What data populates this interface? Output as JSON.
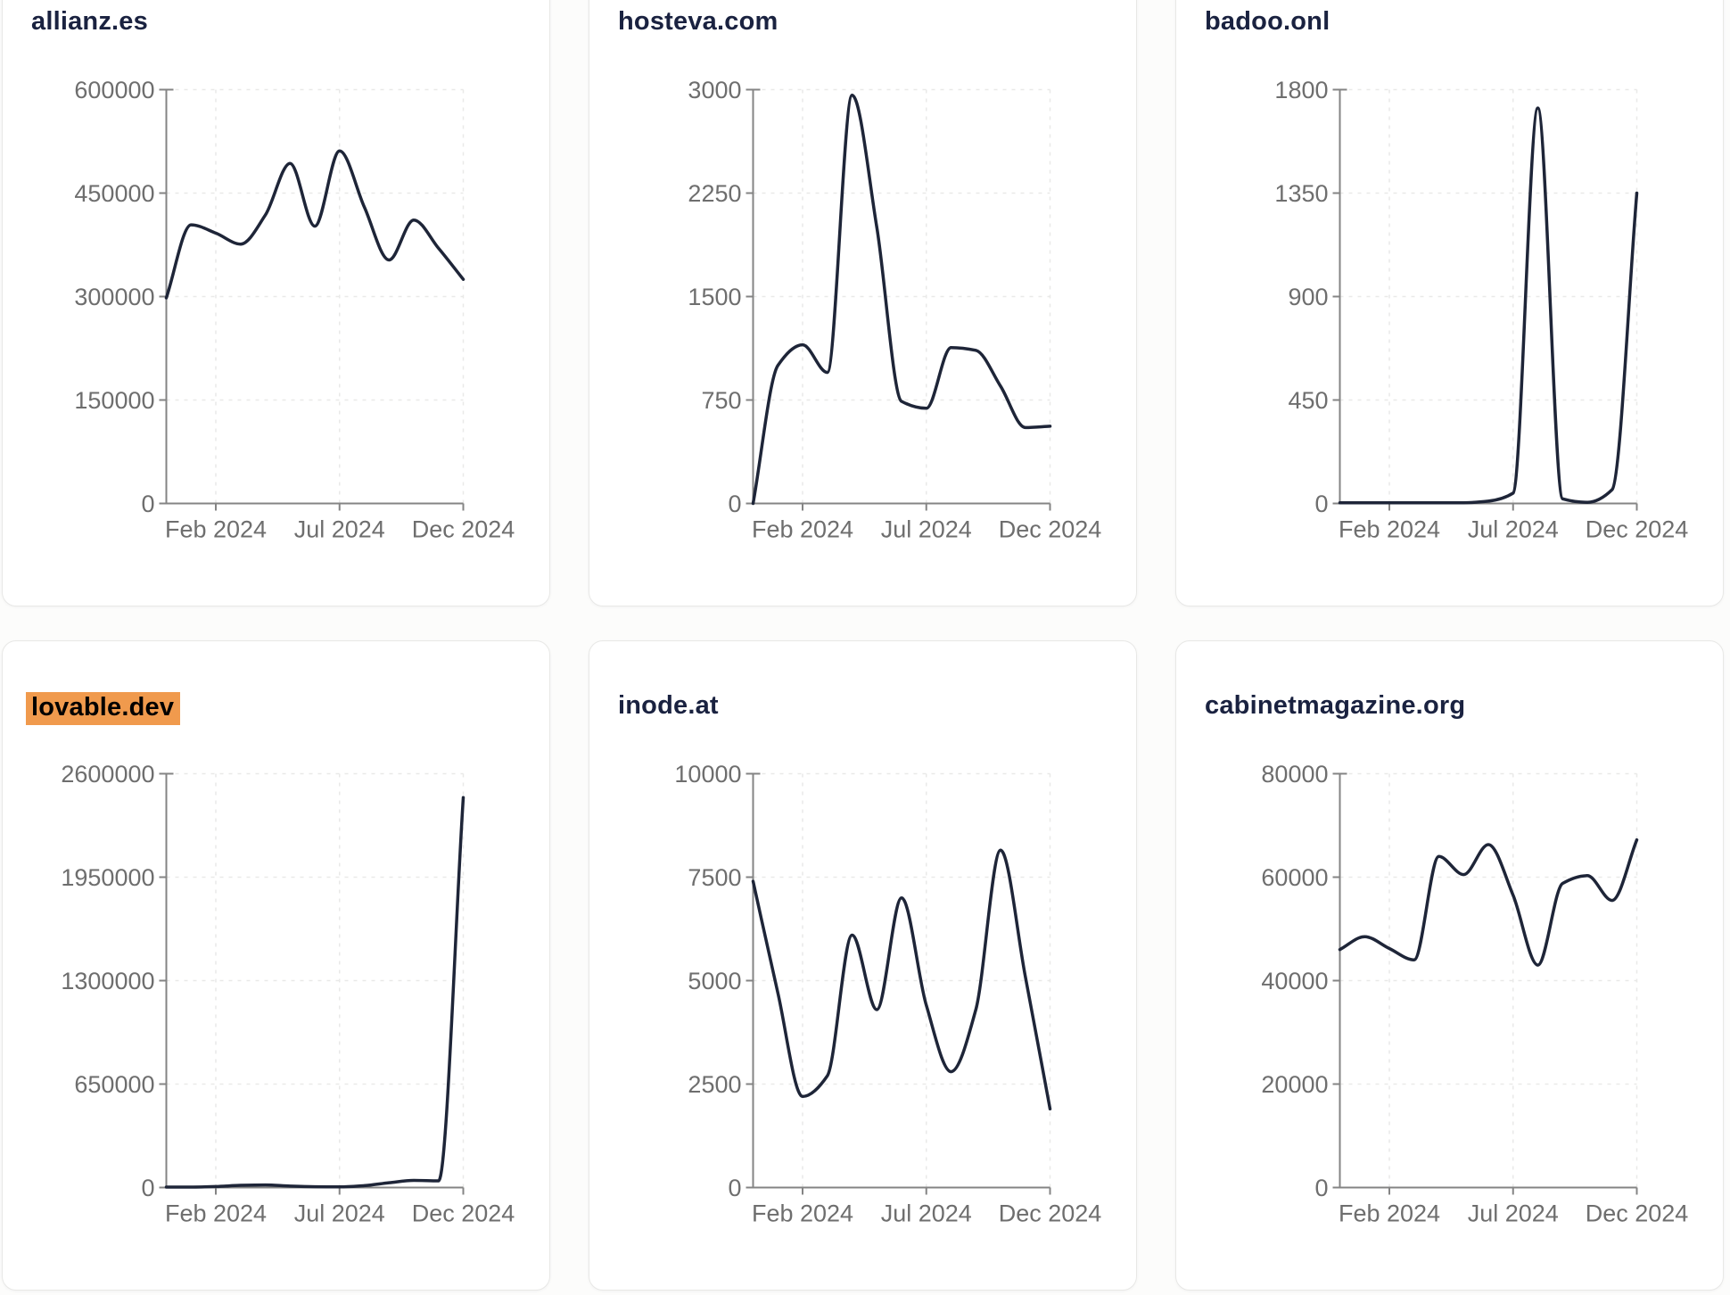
{
  "page": {
    "kind": "traffic-charts-dashboard",
    "colors": {
      "line": "#1e2538",
      "highlight": "#f09a4d",
      "title": "#1a2240",
      "tick_label": "#6e6e6e",
      "axis": "#848484",
      "grid": "#e9e9e8",
      "card_border": "#e8e8e6",
      "card_bg": "#ffffff",
      "page_bg": "#fcfcfb"
    }
  },
  "chart_data": [
    {
      "type": "line",
      "title": "allianz.es",
      "highlighted": false,
      "x": [
        "Dec 2023",
        "Jan 2024",
        "Feb 2024",
        "Mar 2024",
        "Apr 2024",
        "May 2024",
        "Jun 2024",
        "Jul 2024",
        "Aug 2024",
        "Sep 2024",
        "Oct 2024",
        "Nov 2024",
        "Dec 2024"
      ],
      "values": [
        298000,
        404000,
        392000,
        376000,
        418000,
        493000,
        402000,
        511000,
        430000,
        353000,
        411000,
        370000,
        325000
      ],
      "ylim": [
        0,
        600000
      ],
      "y_ticks": [
        0,
        150000,
        300000,
        450000,
        600000
      ],
      "x_tick_labels": [
        "Feb 2024",
        "Jul 2024",
        "Dec 2024"
      ],
      "x_tick_indices": [
        2,
        7,
        12
      ],
      "grid": true,
      "legend": "none"
    },
    {
      "type": "line",
      "title": "hosteva.com",
      "highlighted": false,
      "x": [
        "Dec 2023",
        "Jan 2024",
        "Feb 2024",
        "Mar 2024",
        "Apr 2024",
        "May 2024",
        "Jun 2024",
        "Jul 2024",
        "Aug 2024",
        "Sep 2024",
        "Oct 2024",
        "Nov 2024",
        "Dec 2024"
      ],
      "values": [
        0,
        1000,
        1150,
        950,
        2960,
        2000,
        740,
        690,
        1130,
        1110,
        850,
        550,
        560
      ],
      "ylim": [
        0,
        3000
      ],
      "y_ticks": [
        0,
        750,
        1500,
        2250,
        3000
      ],
      "x_tick_labels": [
        "Feb 2024",
        "Jul 2024",
        "Dec 2024"
      ],
      "x_tick_indices": [
        2,
        7,
        12
      ],
      "grid": true,
      "legend": "none"
    },
    {
      "type": "line",
      "title": "badoo.onl",
      "highlighted": false,
      "x": [
        "Dec 2023",
        "Jan 2024",
        "Feb 2024",
        "Mar 2024",
        "Apr 2024",
        "May 2024",
        "Jun 2024",
        "Jul 2024",
        "Aug 2024",
        "Sep 2024",
        "Oct 2024",
        "Nov 2024",
        "Dec 2024"
      ],
      "values": [
        3,
        3,
        3,
        3,
        3,
        3,
        10,
        45,
        1720,
        20,
        5,
        60,
        1350
      ],
      "ylim": [
        0,
        1800
      ],
      "y_ticks": [
        0,
        450,
        900,
        1350,
        1800
      ],
      "x_tick_labels": [
        "Feb 2024",
        "Jul 2024",
        "Dec 2024"
      ],
      "x_tick_indices": [
        2,
        7,
        12
      ],
      "grid": true,
      "legend": "none"
    },
    {
      "type": "line",
      "title": "lovable.dev",
      "highlighted": true,
      "x": [
        "Dec 2023",
        "Jan 2024",
        "Feb 2024",
        "Mar 2024",
        "Apr 2024",
        "May 2024",
        "Jun 2024",
        "Jul 2024",
        "Aug 2024",
        "Sep 2024",
        "Oct 2024",
        "Nov 2024",
        "Dec 2024"
      ],
      "values": [
        3000,
        3000,
        6000,
        14000,
        16000,
        9000,
        5000,
        4000,
        12000,
        30000,
        45000,
        42000,
        2450000
      ],
      "ylim": [
        0,
        2600000
      ],
      "y_ticks": [
        0,
        650000,
        1300000,
        1950000,
        2600000
      ],
      "x_tick_labels": [
        "Feb 2024",
        "Jul 2024",
        "Dec 2024"
      ],
      "x_tick_indices": [
        2,
        7,
        12
      ],
      "grid": true,
      "legend": "none"
    },
    {
      "type": "line",
      "title": "inode.at",
      "highlighted": false,
      "x": [
        "Dec 2023",
        "Jan 2024",
        "Feb 2024",
        "Mar 2024",
        "Apr 2024",
        "May 2024",
        "Jun 2024",
        "Jul 2024",
        "Aug 2024",
        "Sep 2024",
        "Oct 2024",
        "Nov 2024",
        "Dec 2024"
      ],
      "values": [
        7400,
        4700,
        2200,
        2700,
        6100,
        4300,
        7000,
        4400,
        2800,
        4300,
        8150,
        5100,
        1900
      ],
      "ylim": [
        0,
        10000
      ],
      "y_ticks": [
        0,
        2500,
        5000,
        7500,
        10000
      ],
      "x_tick_labels": [
        "Feb 2024",
        "Jul 2024",
        "Dec 2024"
      ],
      "x_tick_indices": [
        2,
        7,
        12
      ],
      "grid": true,
      "legend": "none"
    },
    {
      "type": "line",
      "title": "cabinetmagazine.org",
      "highlighted": false,
      "x": [
        "Dec 2023",
        "Jan 2024",
        "Feb 2024",
        "Mar 2024",
        "Apr 2024",
        "May 2024",
        "Jun 2024",
        "Jul 2024",
        "Aug 2024",
        "Sep 2024",
        "Oct 2024",
        "Nov 2024",
        "Dec 2024"
      ],
      "values": [
        46000,
        48500,
        46200,
        44000,
        64000,
        60500,
        66300,
        56500,
        43000,
        58800,
        60300,
        55500,
        67200
      ],
      "ylim": [
        0,
        80000
      ],
      "y_ticks": [
        0,
        20000,
        40000,
        60000,
        80000
      ],
      "x_tick_labels": [
        "Feb 2024",
        "Jul 2024",
        "Dec 2024"
      ],
      "x_tick_indices": [
        2,
        7,
        12
      ],
      "grid": true,
      "legend": "none"
    }
  ]
}
